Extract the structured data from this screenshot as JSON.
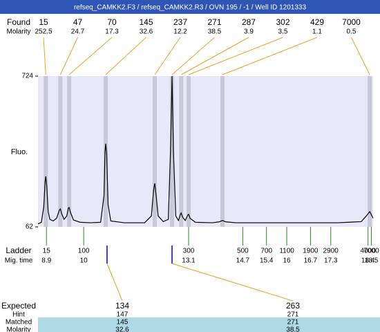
{
  "chart_data": {
    "type": "electropherogram",
    "title": "refseq_CAMKK2.F3 / refseq_CAMKK2.R3 / OVN 195 / -1 / Well ID 1201333",
    "y_label": "Fluo.",
    "ylim": [
      62,
      724
    ],
    "yticks": [
      62,
      724
    ],
    "xlim": [
      8.65,
      18.55
    ],
    "trace": {
      "x": [
        8.65,
        8.75,
        8.82,
        8.86,
        8.88,
        8.91,
        8.95,
        9.0,
        9.1,
        9.2,
        9.28,
        9.31,
        9.35,
        9.42,
        9.5,
        9.55,
        9.57,
        9.61,
        9.7,
        9.9,
        10.2,
        10.5,
        10.6,
        10.63,
        10.65,
        10.68,
        10.72,
        10.8,
        11.2,
        11.8,
        12.0,
        12.07,
        12.1,
        12.14,
        12.2,
        12.35,
        12.5,
        12.57,
        12.61,
        12.65,
        12.72,
        12.8,
        12.86,
        12.88,
        12.92,
        13.0,
        13.08,
        13.1,
        13.14,
        13.3,
        13.8,
        14.0,
        14.1,
        14.2,
        14.5,
        16,
        17.5,
        18.2,
        18.35,
        18.45,
        18.5,
        18.55
      ],
      "values": [
        75,
        82,
        150,
        260,
        284,
        240,
        130,
        95,
        88,
        100,
        135,
        141,
        120,
        95,
        110,
        145,
        147,
        125,
        92,
        82,
        80,
        82,
        200,
        390,
        427,
        380,
        160,
        88,
        80,
        80,
        110,
        230,
        253,
        200,
        110,
        85,
        95,
        420,
        724,
        400,
        110,
        90,
        118,
        123,
        105,
        90,
        115,
        117,
        100,
        82,
        80,
        84,
        90,
        84,
        80,
        80,
        80,
        85,
        110,
        129,
        115,
        100
      ]
    },
    "found": {
      "label": "Found",
      "molarity_label": "Molarity",
      "peaks": [
        {
          "size": 15,
          "molarity": 252.5,
          "mig_time": 8.88
        },
        {
          "size": 47,
          "molarity": 24.7,
          "mig_time": 9.31
        },
        {
          "size": 70,
          "molarity": 17.3,
          "mig_time": 9.57
        },
        {
          "size": 145,
          "molarity": 32.6,
          "mig_time": 10.65
        },
        {
          "size": 237,
          "molarity": 12.2,
          "mig_time": 12.1
        },
        {
          "size": 271,
          "molarity": 38.5,
          "mig_time": 12.61
        },
        {
          "size": 287,
          "molarity": 3.9,
          "mig_time": 12.88
        },
        {
          "size": 302,
          "molarity": 3.5,
          "mig_time": 13.1
        },
        {
          "size": 429,
          "molarity": 1.1,
          "mig_time": 14.1
        },
        {
          "size": 7000,
          "molarity": 0.5,
          "mig_time": 18.45
        }
      ]
    },
    "ladder": {
      "label": "Ladder",
      "time_label": "Mig. time",
      "sizes": [
        15,
        100,
        300,
        500,
        700,
        1100,
        1900,
        2900,
        4000,
        7000
      ],
      "mig_times": [
        8.9,
        10,
        13.1,
        14.7,
        15.4,
        16,
        16.7,
        17.3,
        18.4,
        18.5
      ]
    },
    "expected": {
      "label": "Expected",
      "hint_label": "Hint",
      "matched_label": "Matched",
      "molarity_label": "Molarity",
      "items": [
        {
          "size": 134,
          "mig_time": 10.69,
          "hint": 147,
          "matched": 145,
          "molarity": 32.6
        },
        {
          "size": 263,
          "mig_time": 12.61,
          "hint": 271,
          "matched": 271,
          "molarity": 38.5
        }
      ]
    }
  }
}
